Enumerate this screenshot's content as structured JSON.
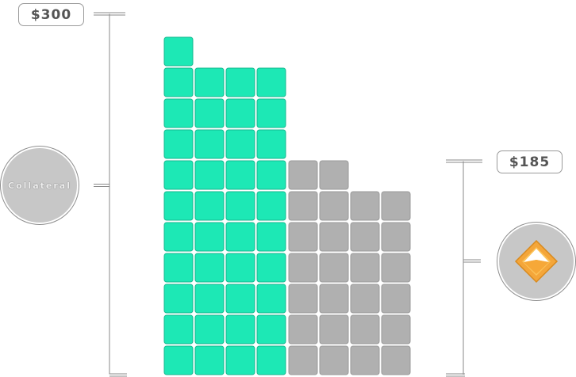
{
  "left_value": "$300",
  "right_value": "$185",
  "left_badge_label": "Collateral",
  "right_badge_icon": "diamond-token-icon",
  "colors": {
    "left_blocks": "#1de8b5",
    "right_blocks": "#b0b0b0",
    "badge": "#c7c7c7",
    "token_orange": "#f4a63a"
  },
  "stacks": {
    "left_column_counts": [
      11,
      10,
      10,
      10
    ],
    "right_column_counts": [
      7,
      7,
      6,
      6
    ]
  }
}
